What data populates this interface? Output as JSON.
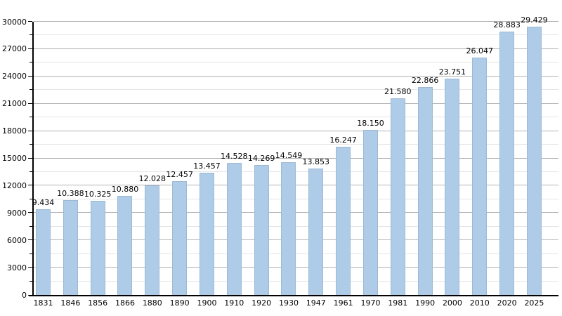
{
  "chart_data": {
    "type": "bar",
    "title": "",
    "xlabel": "",
    "ylabel": "",
    "categories": [
      "1831",
      "1846",
      "1856",
      "1866",
      "1880",
      "1890",
      "1900",
      "1910",
      "1920",
      "1930",
      "1947",
      "1961",
      "1970",
      "1981",
      "1990",
      "2000",
      "2010",
      "2020",
      "2025"
    ],
    "values": [
      9434,
      10388,
      10325,
      10880,
      12028,
      12457,
      13457,
      14528,
      14269,
      14549,
      13853,
      16247,
      18150,
      21580,
      22866,
      23751,
      26047,
      28883,
      29429
    ],
    "value_labels": [
      "9.434",
      "10.388",
      "10.325",
      "10.880",
      "12.028",
      "12.457",
      "13.457",
      "14.528",
      "14.269",
      "14.549",
      "13.853",
      "16.247",
      "18.150",
      "21.580",
      "22.866",
      "23.751",
      "26.047",
      "28.883",
      "29.429"
    ],
    "ylim": [
      0,
      30000
    ],
    "y_major_step": 3000,
    "y_minor_step": 1500,
    "y_tick_labels": [
      "0",
      "3000",
      "6000",
      "9000",
      "12000",
      "15000",
      "18000",
      "21000",
      "24000",
      "27000",
      "30000"
    ],
    "grid": "on",
    "legend_position": "none",
    "colors": {
      "bar_fill": "#aecbe8",
      "bar_border": "#9cb9d6",
      "grid_major": "#b2b2b2",
      "grid_minor": "#e5e5e5",
      "axis": "#000000",
      "text": "#000000",
      "background": "#ffffff"
    }
  }
}
